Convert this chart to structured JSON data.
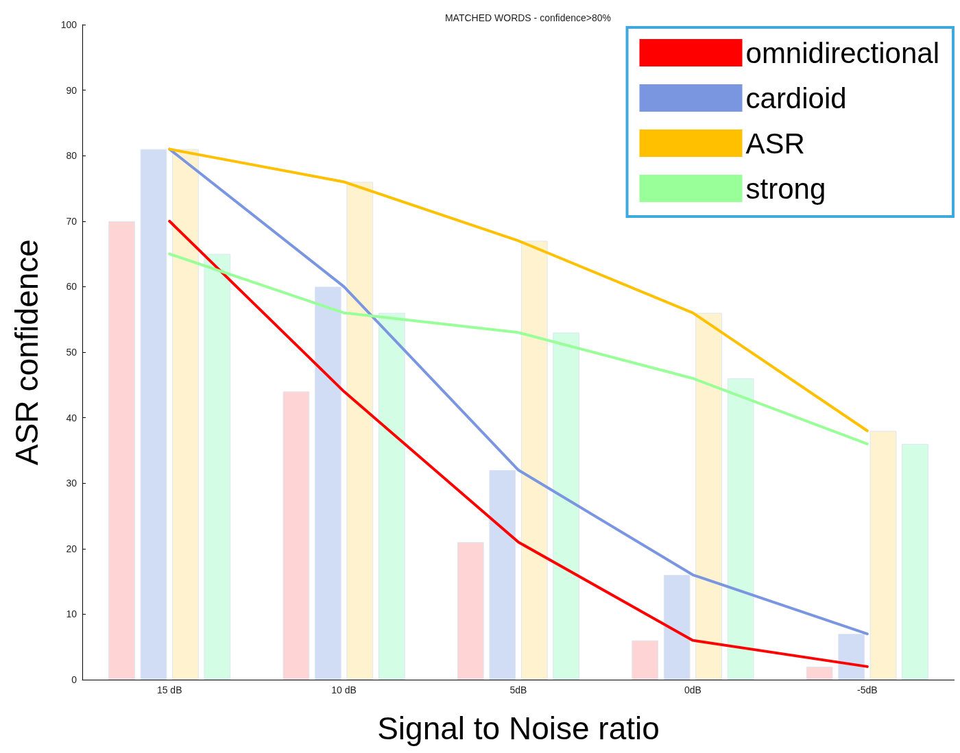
{
  "chart_data": {
    "type": "bar",
    "title": "MATCHED WORDS - confidence>80%",
    "xlabel": "Signal to Noise ratio",
    "ylabel": "ASR confidence",
    "categories": [
      "15 dB",
      "10 dB",
      "5dB",
      "0dB",
      "-5dB"
    ],
    "series": [
      {
        "color": "#ffd4d4",
        "values": [
          70,
          44,
          21,
          6,
          2
        ]
      },
      {
        "color": "#d0ddf5",
        "values": [
          81,
          60,
          32,
          16,
          7
        ]
      },
      {
        "color": "#fff2cf",
        "values": [
          81,
          76,
          67,
          56,
          38
        ]
      },
      {
        "color": "#d4fde6",
        "values": [
          65,
          56,
          53,
          46,
          36
        ]
      },
      {
        "type": "line",
        "name": "omnidirectional",
        "color": "#ff0000",
        "values": [
          70,
          44,
          21,
          6,
          2
        ]
      },
      {
        "type": "line",
        "name": "cardioid",
        "color": "#7b96e0",
        "values": [
          81,
          60,
          32,
          16,
          7
        ]
      },
      {
        "type": "line",
        "name": "ASR",
        "color": "#ffc000",
        "values": [
          81,
          76,
          67,
          56,
          38
        ]
      },
      {
        "type": "line",
        "name": "strong",
        "color": "#99ff99",
        "values": [
          65,
          56,
          53,
          46,
          36
        ]
      }
    ],
    "ylim": [
      0,
      100
    ],
    "yticks": [
      0,
      10,
      20,
      30,
      40,
      50,
      60,
      70,
      80,
      90,
      100
    ],
    "grid": false,
    "legend": "top right",
    "marker": "none",
    "line_style": "solid"
  }
}
